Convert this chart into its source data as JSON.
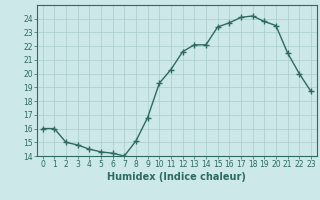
{
  "x": [
    0,
    1,
    2,
    3,
    4,
    5,
    6,
    7,
    8,
    9,
    10,
    11,
    12,
    13,
    14,
    15,
    16,
    17,
    18,
    19,
    20,
    21,
    22,
    23
  ],
  "y": [
    16.0,
    16.0,
    15.0,
    14.8,
    14.5,
    14.3,
    14.2,
    14.0,
    15.1,
    16.8,
    19.3,
    20.3,
    21.6,
    22.1,
    22.1,
    23.4,
    23.7,
    24.1,
    24.2,
    23.8,
    23.5,
    21.5,
    20.0,
    18.7
  ],
  "line_color": "#2e6b5e",
  "marker": "+",
  "marker_size": 4,
  "marker_linewidth": 1.0,
  "bg_color": "#cce8e8",
  "grid_color": "#aacccc",
  "xlabel": "Humidex (Indice chaleur)",
  "xlim": [
    -0.5,
    23.5
  ],
  "ylim": [
    14.0,
    25.0
  ],
  "yticks": [
    14,
    15,
    16,
    17,
    18,
    19,
    20,
    21,
    22,
    23,
    24
  ],
  "xticks": [
    0,
    1,
    2,
    3,
    4,
    5,
    6,
    7,
    8,
    9,
    10,
    11,
    12,
    13,
    14,
    15,
    16,
    17,
    18,
    19,
    20,
    21,
    22,
    23
  ],
  "tick_fontsize": 5.5,
  "label_fontsize": 7,
  "linewidth": 1.0
}
